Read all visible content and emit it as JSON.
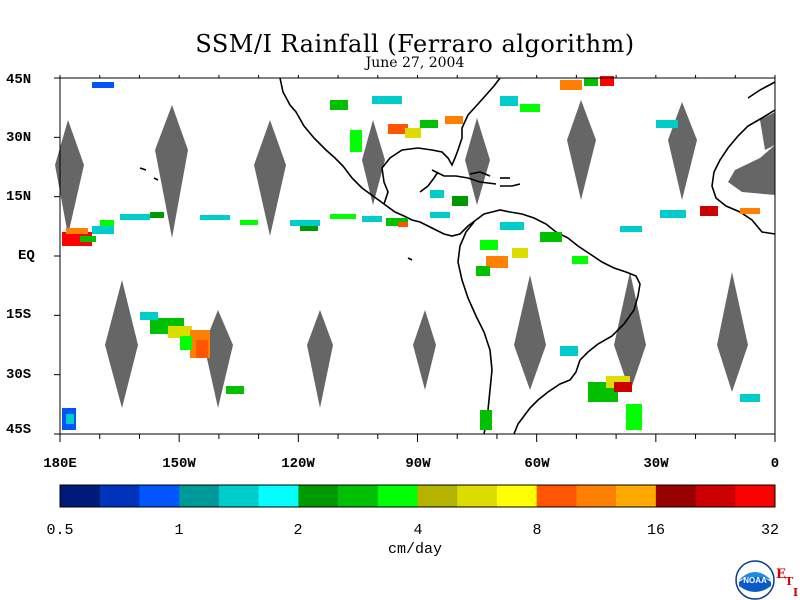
{
  "title": "SSM/I Rainfall (Ferraro algorithm)",
  "date": "June 27, 2004",
  "map": {
    "lat_labels": [
      "45N",
      "30N",
      "15N",
      "EQ",
      "15S",
      "30S",
      "45S"
    ],
    "lon_labels": [
      "180E",
      "150W",
      "120W",
      "90W",
      "60W",
      "30W",
      "0"
    ],
    "lon_range_deg": [
      -180,
      0
    ],
    "lat_range_deg": [
      -45,
      45
    ],
    "land_outline_color": "#000000",
    "no_data_swath_color": "#666666"
  },
  "colorbar": {
    "tick_labels": [
      "0.5",
      "1",
      "2",
      "4",
      "8",
      "16",
      "32"
    ],
    "unit": "cm/day",
    "colors": [
      "#001a7a",
      "#0033bb",
      "#0055ff",
      "#00999a",
      "#00cccc",
      "#00ffff",
      "#009900",
      "#00c000",
      "#00ff00",
      "#b4b400",
      "#dddd00",
      "#ffff00",
      "#ff5500",
      "#ff8000",
      "#ffaa00",
      "#990000",
      "#cc0000",
      "#ff0000"
    ]
  },
  "logo": {
    "agency": "NOAA",
    "letters": [
      "E",
      "T",
      "I"
    ]
  }
}
